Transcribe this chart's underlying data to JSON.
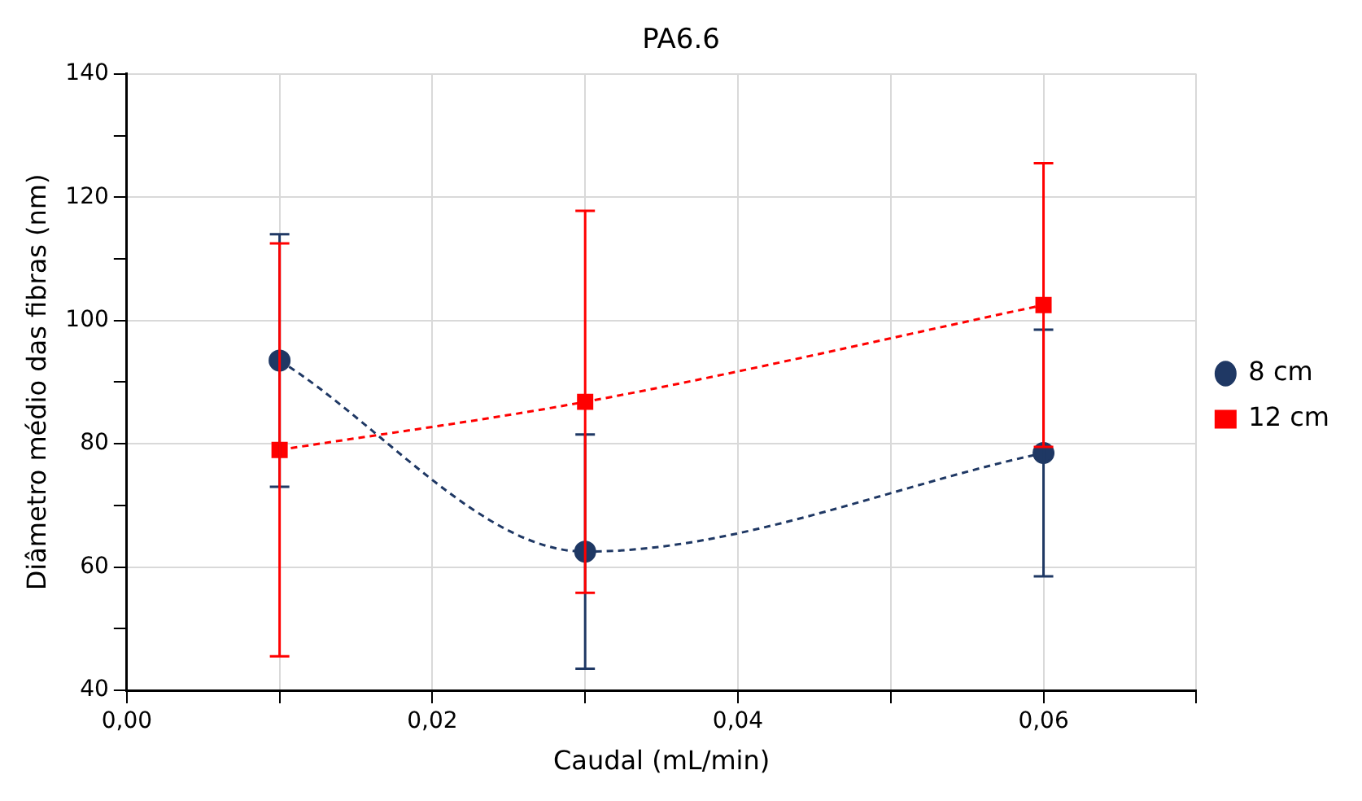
{
  "chart_data": {
    "type": "line",
    "title": "PA6.6",
    "xlabel": "Caudal (mL/min)",
    "ylabel": "Diâmetro médio das fibras (nm)",
    "x": [
      0.01,
      0.03,
      0.06
    ],
    "series": [
      {
        "name": "8 cm",
        "color": "#1f3864",
        "marker": "circle",
        "values": [
          93.5,
          62.5,
          78.5
        ],
        "errors": [
          20.5,
          19,
          20
        ]
      },
      {
        "name": "12 cm",
        "color": "#ff0000",
        "marker": "square",
        "values": [
          79,
          86.8,
          102.5
        ],
        "errors": [
          33.5,
          31,
          23
        ]
      }
    ],
    "xlim": [
      0,
      0.07
    ],
    "xticks": [
      {
        "value": 0,
        "label": "0,00"
      },
      {
        "value": 0.01,
        "label": null
      },
      {
        "value": 0.02,
        "label": "0,02"
      },
      {
        "value": 0.03,
        "label": null
      },
      {
        "value": 0.04,
        "label": "0,04"
      },
      {
        "value": 0.05,
        "label": null
      },
      {
        "value": 0.06,
        "label": "0,06"
      },
      {
        "value": 0.07,
        "label": null
      }
    ],
    "ylim": [
      40,
      140
    ],
    "yticks": [
      40,
      {
        "value": 50,
        "label": null
      },
      60,
      {
        "value": 70,
        "label": null
      },
      80,
      {
        "value": 90,
        "label": null
      },
      100,
      {
        "value": 110,
        "label": null
      },
      120,
      {
        "value": 130,
        "label": null
      },
      140
    ],
    "grid": true,
    "legend": "right",
    "line_style": "dashed"
  }
}
